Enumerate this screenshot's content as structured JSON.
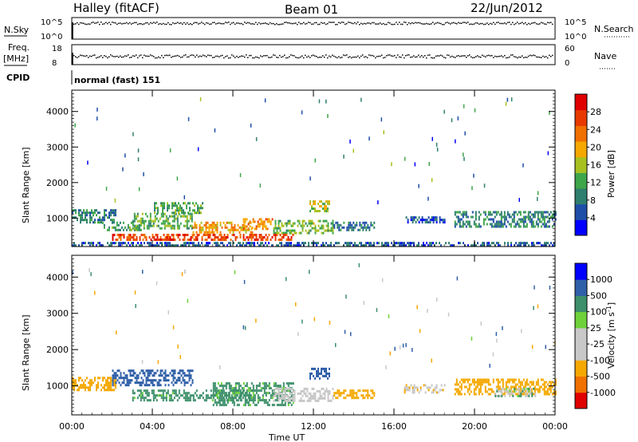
{
  "header": {
    "station": "Halley (fitACF)",
    "beam": "Beam 01",
    "date": "22/Jun/2012"
  },
  "strip_panels": {
    "nsky_label": "N.Sky",
    "nsky_ticks": [
      "10^5",
      "10^0"
    ],
    "nsearch_label": "N.Search",
    "nsearch_ticks": [
      "10^5",
      "10^0"
    ],
    "freq_label": "Freq.",
    "freq_unit": "[MHz]",
    "freq_ticks": [
      "18",
      "8"
    ],
    "nave_label": "Nave",
    "nave_ticks": [
      "60",
      "0"
    ],
    "cpid_label": "CPID",
    "cpid_value": "normal (fast) 151"
  },
  "colors": {
    "power_scale": [
      "#0000ff",
      "#1f4ea8",
      "#2f7f6f",
      "#3fa64a",
      "#a8c020",
      "#f5a800",
      "#f07000",
      "#e83a00",
      "#e00000"
    ],
    "velocity_scale": [
      "#e00000",
      "#f07000",
      "#f5a800",
      "#c8c8c8",
      "#c8c8c8",
      "#6ed23a",
      "#3c8f6a",
      "#2f5fa8",
      "#0000ff"
    ]
  },
  "chart_data": [
    {
      "type": "heatmap",
      "name": "power",
      "ylabel": "Slant Range [km]",
      "xlabel": "Time UT",
      "x_ticks": [
        "00:00",
        "04:00",
        "08:00",
        "12:00",
        "16:00",
        "20:00",
        "00:00"
      ],
      "y_ticks": [
        "1000",
        "2000",
        "3000",
        "4000"
      ],
      "ylim": [
        200,
        4600
      ],
      "xlim_hours": [
        0,
        24
      ],
      "colorbar_label": "Power [dB]",
      "colorbar_ticks": [
        "4",
        "8",
        "12",
        "16",
        "20",
        "24",
        "28"
      ],
      "colorbar_range": [
        0,
        32
      ],
      "regions": [
        {
          "x0": 0,
          "x1": 2.2,
          "y0": 900,
          "y1": 1250,
          "value": 9
        },
        {
          "x0": 1.5,
          "x1": 3.5,
          "y0": 650,
          "y1": 900,
          "value": 11
        },
        {
          "x0": 3,
          "x1": 6,
          "y0": 700,
          "y1": 1150,
          "value": 13
        },
        {
          "x0": 4,
          "x1": 6.5,
          "y0": 1150,
          "y1": 1450,
          "value": 12
        },
        {
          "x0": 6,
          "x1": 9,
          "y0": 600,
          "y1": 900,
          "value": 20
        },
        {
          "x0": 8.5,
          "x1": 10,
          "y0": 700,
          "y1": 1000,
          "value": 22
        },
        {
          "x0": 10,
          "x1": 13,
          "y0": 600,
          "y1": 950,
          "value": 14
        },
        {
          "x0": 11.8,
          "x1": 12.8,
          "y0": 1200,
          "y1": 1500,
          "value": 16
        },
        {
          "x0": 13,
          "x1": 15,
          "y0": 650,
          "y1": 900,
          "value": 8
        },
        {
          "x0": 16.5,
          "x1": 18.5,
          "y0": 850,
          "y1": 1050,
          "value": 6
        },
        {
          "x0": 19,
          "x1": 24,
          "y0": 750,
          "y1": 1200,
          "value": 9
        },
        {
          "x0": 2,
          "x1": 11,
          "y0": 420,
          "y1": 560,
          "value": 26
        },
        {
          "x0": 0,
          "x1": 24,
          "y0": 250,
          "y1": 330,
          "value": 6
        }
      ]
    },
    {
      "type": "heatmap",
      "name": "velocity",
      "ylabel": "Slant Range [km]",
      "xlabel": "Time UT",
      "x_ticks": [
        "00:00",
        "04:00",
        "08:00",
        "12:00",
        "16:00",
        "20:00",
        "00:00"
      ],
      "y_ticks": [
        "1000",
        "2000",
        "3000",
        "4000"
      ],
      "ylim": [
        200,
        4600
      ],
      "xlim_hours": [
        0,
        24
      ],
      "colorbar_label": "Velocity [m s^-1]",
      "colorbar_ticks": [
        "-1000",
        "-500",
        "-100",
        "-25",
        "25",
        "100",
        "500",
        "1000"
      ],
      "regions": [
        {
          "x0": 0,
          "x1": 2.2,
          "y0": 900,
          "y1": 1250,
          "value": -300
        },
        {
          "x0": 2,
          "x1": 6,
          "y0": 1050,
          "y1": 1450,
          "value": 150
        },
        {
          "x0": 3,
          "x1": 9,
          "y0": 600,
          "y1": 900,
          "value": 60
        },
        {
          "x0": 7,
          "x1": 11,
          "y0": 450,
          "y1": 1100,
          "value": 50
        },
        {
          "x0": 10,
          "x1": 13,
          "y0": 600,
          "y1": 950,
          "value": -60
        },
        {
          "x0": 11.8,
          "x1": 12.8,
          "y0": 1200,
          "y1": 1500,
          "value": 150
        },
        {
          "x0": 13,
          "x1": 15,
          "y0": 650,
          "y1": 900,
          "value": -200
        },
        {
          "x0": 16.5,
          "x1": 18.5,
          "y0": 850,
          "y1": 1050,
          "value": -80
        },
        {
          "x0": 19,
          "x1": 24,
          "y0": 750,
          "y1": 1200,
          "value": -150
        },
        {
          "x0": 21,
          "x1": 23,
          "y0": 750,
          "y1": 950,
          "value": 0
        }
      ]
    }
  ]
}
